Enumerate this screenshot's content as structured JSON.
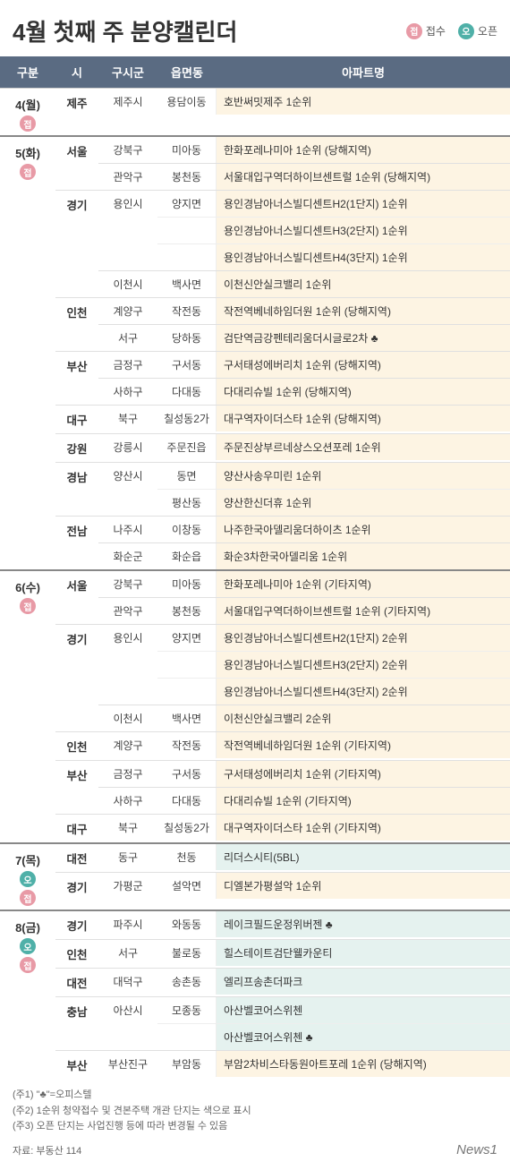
{
  "title": "4월 첫째 주 분양캘린더",
  "legend": {
    "jup": "접수",
    "open": "오픈",
    "jup_badge": "접",
    "open_badge": "오"
  },
  "colors": {
    "header_bg": "#5a6b82",
    "jup_badge": "#e89aa6",
    "open_badge": "#4fb0a8",
    "jup_row_bg": "#fdf4e3",
    "open_row_bg": "#e5f2ef"
  },
  "columns": [
    "구분",
    "시",
    "구시군",
    "읍면동",
    "아파트명"
  ],
  "days": [
    {
      "date": "4(월)",
      "groups": [
        {
          "type": "jup",
          "sis": [
            {
              "si": "제주",
              "gus": [
                {
                  "gu": "제주시",
                  "rows": [
                    {
                      "eup": "용담이동",
                      "apt": "호반써밋제주 1순위"
                    }
                  ]
                }
              ]
            }
          ]
        }
      ]
    },
    {
      "date": "5(화)",
      "groups": [
        {
          "type": "jup",
          "sis": [
            {
              "si": "서울",
              "gus": [
                {
                  "gu": "강북구",
                  "rows": [
                    {
                      "eup": "미아동",
                      "apt": "한화포레나미아 1순위 (당해지역)"
                    }
                  ]
                },
                {
                  "gu": "관악구",
                  "rows": [
                    {
                      "eup": "봉천동",
                      "apt": "서울대입구역더하이브센트럴 1순위 (당해지역)"
                    }
                  ]
                }
              ]
            },
            {
              "si": "경기",
              "gus": [
                {
                  "gu": "용인시",
                  "rows": [
                    {
                      "eup": "양지면",
                      "apt": "용인경남아너스빌디센트H2(1단지) 1순위"
                    },
                    {
                      "eup": "",
                      "apt": "용인경남아너스빌디센트H3(2단지) 1순위"
                    },
                    {
                      "eup": "",
                      "apt": "용인경남아너스빌디센트H4(3단지) 1순위"
                    }
                  ]
                },
                {
                  "gu": "이천시",
                  "rows": [
                    {
                      "eup": "백사면",
                      "apt": "이천신안실크밸리 1순위"
                    }
                  ]
                }
              ]
            },
            {
              "si": "인천",
              "gus": [
                {
                  "gu": "계양구",
                  "rows": [
                    {
                      "eup": "작전동",
                      "apt": "작전역베네하임더원 1순위 (당해지역)"
                    }
                  ]
                },
                {
                  "gu": "서구",
                  "rows": [
                    {
                      "eup": "당하동",
                      "apt": "검단역금강펜테리움더시글로2차 ♣"
                    }
                  ]
                }
              ]
            },
            {
              "si": "부산",
              "gus": [
                {
                  "gu": "금정구",
                  "rows": [
                    {
                      "eup": "구서동",
                      "apt": "구서태성에버리치 1순위 (당해지역)"
                    }
                  ]
                },
                {
                  "gu": "사하구",
                  "rows": [
                    {
                      "eup": "다대동",
                      "apt": "다대리슈빌 1순위 (당해지역)"
                    }
                  ]
                }
              ]
            },
            {
              "si": "대구",
              "gus": [
                {
                  "gu": "북구",
                  "rows": [
                    {
                      "eup": "칠성동2가",
                      "apt": "대구역자이더스타 1순위 (당해지역)"
                    }
                  ]
                }
              ]
            },
            {
              "si": "강원",
              "gus": [
                {
                  "gu": "강릉시",
                  "rows": [
                    {
                      "eup": "주문진읍",
                      "apt": "주문진상부르네상스오션포레 1순위"
                    }
                  ]
                }
              ]
            },
            {
              "si": "경남",
              "gus": [
                {
                  "gu": "양산시",
                  "rows": [
                    {
                      "eup": "동면",
                      "apt": "양산사송우미린 1순위"
                    },
                    {
                      "eup": "평산동",
                      "apt": "양산한신더휴 1순위"
                    }
                  ]
                }
              ]
            },
            {
              "si": "전남",
              "gus": [
                {
                  "gu": "나주시",
                  "rows": [
                    {
                      "eup": "이창동",
                      "apt": "나주한국아델리움더하이츠 1순위"
                    }
                  ]
                },
                {
                  "gu": "화순군",
                  "rows": [
                    {
                      "eup": "화순읍",
                      "apt": "화순3차한국아델리움 1순위"
                    }
                  ]
                }
              ]
            }
          ]
        }
      ]
    },
    {
      "date": "6(수)",
      "groups": [
        {
          "type": "jup",
          "sis": [
            {
              "si": "서울",
              "gus": [
                {
                  "gu": "강북구",
                  "rows": [
                    {
                      "eup": "미아동",
                      "apt": "한화포레나미아 1순위 (기타지역)"
                    }
                  ]
                },
                {
                  "gu": "관악구",
                  "rows": [
                    {
                      "eup": "봉천동",
                      "apt": "서울대입구역더하이브센트럴 1순위 (기타지역)"
                    }
                  ]
                }
              ]
            },
            {
              "si": "경기",
              "gus": [
                {
                  "gu": "용인시",
                  "rows": [
                    {
                      "eup": "양지면",
                      "apt": "용인경남아너스빌디센트H2(1단지) 2순위"
                    },
                    {
                      "eup": "",
                      "apt": "용인경남아너스빌디센트H3(2단지) 2순위"
                    },
                    {
                      "eup": "",
                      "apt": "용인경남아너스빌디센트H4(3단지) 2순위"
                    }
                  ]
                },
                {
                  "gu": "이천시",
                  "rows": [
                    {
                      "eup": "백사면",
                      "apt": "이천신안실크밸리 2순위"
                    }
                  ]
                }
              ]
            },
            {
              "si": "인천",
              "gus": [
                {
                  "gu": "계양구",
                  "rows": [
                    {
                      "eup": "작전동",
                      "apt": "작전역베네하임더원 1순위 (기타지역)"
                    }
                  ]
                }
              ]
            },
            {
              "si": "부산",
              "gus": [
                {
                  "gu": "금정구",
                  "rows": [
                    {
                      "eup": "구서동",
                      "apt": "구서태성에버리치 1순위 (기타지역)"
                    }
                  ]
                },
                {
                  "gu": "사하구",
                  "rows": [
                    {
                      "eup": "다대동",
                      "apt": "다대리슈빌 1순위 (기타지역)"
                    }
                  ]
                }
              ]
            },
            {
              "si": "대구",
              "gus": [
                {
                  "gu": "북구",
                  "rows": [
                    {
                      "eup": "칠성동2가",
                      "apt": "대구역자이더스타 1순위 (기타지역)"
                    }
                  ]
                }
              ]
            }
          ]
        }
      ]
    },
    {
      "date": "7(목)",
      "groups": [
        {
          "type": "open",
          "sis": [
            {
              "si": "대전",
              "gus": [
                {
                  "gu": "동구",
                  "rows": [
                    {
                      "eup": "천동",
                      "apt": "리더스시티(5BL)"
                    }
                  ]
                }
              ]
            }
          ]
        },
        {
          "type": "jup",
          "sis": [
            {
              "si": "경기",
              "gus": [
                {
                  "gu": "가평군",
                  "rows": [
                    {
                      "eup": "설악면",
                      "apt": "디엘본가평설악 1순위"
                    }
                  ]
                }
              ]
            }
          ]
        }
      ]
    },
    {
      "date": "8(금)",
      "groups": [
        {
          "type": "open",
          "sis": [
            {
              "si": "경기",
              "gus": [
                {
                  "gu": "파주시",
                  "rows": [
                    {
                      "eup": "와동동",
                      "apt": "레이크필드운정위버젠 ♣"
                    }
                  ]
                }
              ]
            },
            {
              "si": "인천",
              "gus": [
                {
                  "gu": "서구",
                  "rows": [
                    {
                      "eup": "불로동",
                      "apt": "힐스테이트검단웰카운티"
                    }
                  ]
                }
              ]
            },
            {
              "si": "대전",
              "gus": [
                {
                  "gu": "대덕구",
                  "rows": [
                    {
                      "eup": "송촌동",
                      "apt": "엘리프송촌더파크"
                    }
                  ]
                }
              ]
            },
            {
              "si": "충남",
              "gus": [
                {
                  "gu": "아산시",
                  "rows": [
                    {
                      "eup": "모종동",
                      "apt": "아산벨코어스위첸"
                    },
                    {
                      "eup": "",
                      "apt": "아산벨코어스위첸 ♣"
                    }
                  ]
                }
              ]
            }
          ]
        },
        {
          "type": "jup",
          "sis": [
            {
              "si": "부산",
              "gus": [
                {
                  "gu": "부산진구",
                  "rows": [
                    {
                      "eup": "부암동",
                      "apt": "부암2차비스타동원아트포레 1순위 (당해지역)"
                    }
                  ]
                }
              ]
            }
          ]
        }
      ]
    }
  ],
  "notes": [
    "(주1) \"♣\"=오피스텔",
    "(주2) 1순위 청약접수 및 견본주택 개관 단지는 색으로 표시",
    "(주3) 오픈 단지는 사업진행 등에 따라 변경될 수 있음"
  ],
  "source": "자료:  부동산 114",
  "brand": "News1"
}
